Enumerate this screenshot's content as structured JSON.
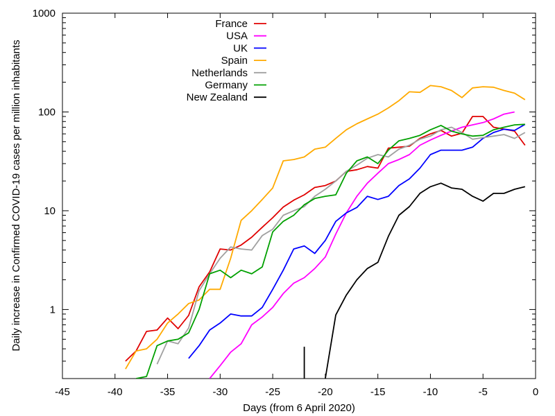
{
  "chart_data": {
    "type": "line",
    "title": "",
    "xlabel": "Days (from 6 April 2020)",
    "ylabel": "Daily increase in Confirmed COVID-19 cases per million inhabitants",
    "xlim": [
      -45,
      0
    ],
    "ylim": [
      0.2,
      1000
    ],
    "yscale": "log",
    "grid": false,
    "legend_position": "top-left",
    "xticks": [
      "-45",
      "-40",
      "-35",
      "-30",
      "-25",
      "-20",
      "-15",
      "-10",
      "-5",
      "0"
    ],
    "yticks": [
      "1",
      "10",
      "100",
      "1000"
    ],
    "series": [
      {
        "name": "France",
        "color": "#e00000",
        "x": [
          -39,
          -38,
          -37,
          -36,
          -35,
          -34,
          -33,
          -32,
          -31,
          -30,
          -29,
          -28,
          -27,
          -26,
          -25,
          -24,
          -23,
          -22,
          -21,
          -20,
          -19,
          -18,
          -17,
          -16,
          -15,
          -14,
          -13,
          -12,
          -11,
          -10,
          -9,
          -8,
          -7,
          -6,
          -5,
          -4,
          -3,
          -2,
          -1
        ],
        "y": [
          0.3,
          0.38,
          0.6,
          0.62,
          0.82,
          0.64,
          0.87,
          1.7,
          2.4,
          4.1,
          4.0,
          4.5,
          5.4,
          6.8,
          8.5,
          10.9,
          12.8,
          14.5,
          17.2,
          18.0,
          20.0,
          25.0,
          26.0,
          28.0,
          27.0,
          43.0,
          44.0,
          45.0,
          54.0,
          60.0,
          65.0,
          57.0,
          61.0,
          90.0,
          90.0,
          70.0,
          67.0,
          64.0,
          46.0
        ]
      },
      {
        "name": "USA",
        "color": "#ff00ff",
        "x": [
          -31,
          -30,
          -29,
          -28,
          -27,
          -26,
          -25,
          -24,
          -23,
          -22,
          -21,
          -20,
          -19,
          -18,
          -17,
          -16,
          -15,
          -14,
          -13,
          -12,
          -11,
          -10,
          -9,
          -8,
          -7,
          -6,
          -5,
          -4,
          -3,
          -2
        ],
        "y": [
          0.2,
          0.27,
          0.37,
          0.45,
          0.7,
          0.84,
          1.05,
          1.45,
          1.85,
          2.1,
          2.6,
          3.4,
          5.8,
          9.5,
          14.0,
          19.0,
          24.0,
          30.0,
          33.0,
          37.0,
          46.0,
          52.0,
          58.0,
          64.0,
          70.0,
          74.0,
          78.0,
          85.0,
          95.0,
          100.0
        ]
      },
      {
        "name": "UK",
        "color": "#0000ff",
        "x": [
          -33,
          -32,
          -31,
          -30,
          -29,
          -28,
          -27,
          -26,
          -25,
          -24,
          -23,
          -22,
          -21,
          -20,
          -19,
          -18,
          -17,
          -16,
          -15,
          -14,
          -13,
          -12,
          -11,
          -10,
          -9,
          -8,
          -7,
          -6,
          -5,
          -4,
          -3,
          -2,
          -1
        ],
        "y": [
          0.32,
          0.43,
          0.62,
          0.73,
          0.9,
          0.86,
          0.86,
          1.05,
          1.6,
          2.5,
          4.1,
          4.4,
          3.7,
          5.0,
          7.8,
          9.5,
          10.8,
          14.0,
          13.0,
          14.0,
          18.0,
          21.0,
          27.0,
          37.0,
          41.0,
          41.0,
          41.0,
          44.0,
          54.0,
          62.0,
          67.0,
          65.0,
          75.0
        ]
      },
      {
        "name": "Spain",
        "color": "#ffaa00",
        "x": [
          -39,
          -38,
          -37,
          -36,
          -35,
          -34,
          -33,
          -32,
          -31,
          -30,
          -29,
          -28,
          -27,
          -26,
          -25,
          -24,
          -23,
          -22,
          -21,
          -20,
          -19,
          -18,
          -17,
          -16,
          -15,
          -14,
          -13,
          -12,
          -11,
          -10,
          -9,
          -8,
          -7,
          -6,
          -5,
          -4,
          -3,
          -2,
          -1
        ],
        "y": [
          0.25,
          0.38,
          0.4,
          0.5,
          0.73,
          0.9,
          1.15,
          1.25,
          1.6,
          1.6,
          3.3,
          8.0,
          10.0,
          13.0,
          17.0,
          32.0,
          33.0,
          35.0,
          42.0,
          44.0,
          54.0,
          66.0,
          76.0,
          85.0,
          95.0,
          110.0,
          130.0,
          160.0,
          158.0,
          185.0,
          180.0,
          165.0,
          140.0,
          175.0,
          180.0,
          178.0,
          165.0,
          155.0,
          133.0
        ]
      },
      {
        "name": "Netherlands",
        "color": "#a0a0a0",
        "x": [
          -36,
          -35,
          -34,
          -33,
          -32,
          -31,
          -30,
          -29,
          -28,
          -27,
          -26,
          -25,
          -24,
          -23,
          -22,
          -21,
          -20,
          -19,
          -18,
          -17,
          -16,
          -15,
          -14,
          -13,
          -12,
          -11,
          -10,
          -9,
          -8,
          -7,
          -6,
          -5,
          -4,
          -3,
          -2,
          -1
        ],
        "y": [
          0.28,
          0.48,
          0.45,
          0.65,
          1.55,
          2.3,
          3.3,
          4.3,
          4.1,
          4.0,
          5.6,
          6.5,
          9.0,
          10.0,
          11.0,
          14.0,
          16.5,
          20.0,
          25.0,
          29.0,
          34.0,
          37.0,
          35.0,
          42.0,
          46.0,
          53.0,
          57.0,
          66.0,
          70.0,
          62.0,
          53.0,
          55.0,
          57.0,
          59.0,
          54.0,
          62.0
        ]
      },
      {
        "name": "Germany",
        "color": "#00a000",
        "x": [
          -38,
          -37,
          -36,
          -35,
          -34,
          -33,
          -32,
          -31,
          -30,
          -29,
          -28,
          -27,
          -26,
          -25,
          -24,
          -23,
          -22,
          -21,
          -20,
          -19,
          -18,
          -17,
          -16,
          -15,
          -14,
          -13,
          -12,
          -11,
          -10,
          -9,
          -8,
          -7,
          -6,
          -5,
          -4,
          -3,
          -2,
          -1
        ],
        "y": [
          0.2,
          0.21,
          0.43,
          0.48,
          0.5,
          0.58,
          1.0,
          2.3,
          2.5,
          2.1,
          2.5,
          2.3,
          2.7,
          6.1,
          7.8,
          9.0,
          11.5,
          13.3,
          14.0,
          14.5,
          24.0,
          32.0,
          35.0,
          30.0,
          41.0,
          51.0,
          54.0,
          58.0,
          66.0,
          73.0,
          64.0,
          60.0,
          57.0,
          58.0,
          66.0,
          70.0,
          74.0,
          75.0
        ]
      },
      {
        "name": "New Zealand",
        "color": "#000000",
        "x": [
          -20,
          -19,
          -18,
          -17,
          -16,
          -15,
          -14,
          -13,
          -12,
          -11,
          -10,
          -9,
          -8,
          -7,
          -6,
          -5,
          -4,
          -3,
          -2,
          -1
        ],
        "y": [
          0.2,
          0.88,
          1.4,
          2.0,
          2.6,
          3.0,
          5.5,
          9.0,
          11.0,
          15.0,
          17.5,
          19.0,
          17.0,
          16.5,
          14.0,
          12.5,
          15.0,
          15.0,
          16.5,
          17.5
        ]
      },
      {
        "name": "",
        "color": "#000000",
        "x": [
          -22,
          -22
        ],
        "y": [
          0.42,
          0.2
        ]
      }
    ]
  }
}
